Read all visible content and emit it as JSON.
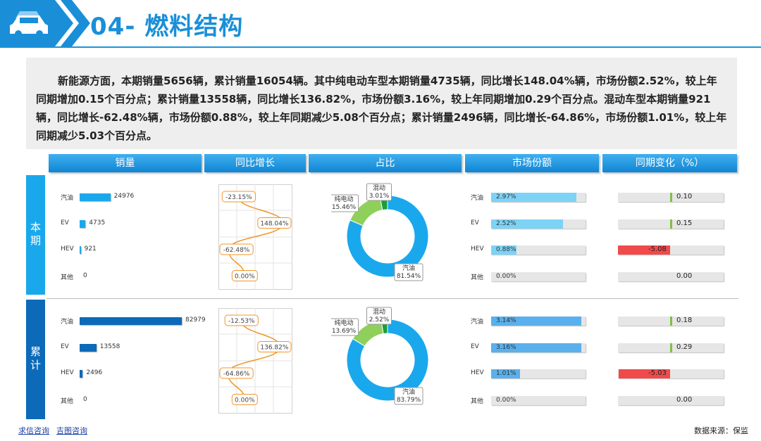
{
  "header": {
    "title": "04- 燃料结构"
  },
  "summary": "新能源方面，本期销量5656辆，累计销量16054辆。其中纯电动车型本期销量4735辆，同比增长148.04%辆，市场份额2.52%，较上年同期增加0.15个百分点；累计销量13558辆，同比增长136.82%，市场份额3.16%，较上年同期增加0.29个百分点。混动车型本期销量921辆，同比增长-62.48%辆，市场份额0.88%，较上年同期减少5.08个百分点；累计销量2496辆，同比增长-64.86%，市场份额1.01%，较上年同期减少5.03个百分点。",
  "columns": [
    "销量",
    "同比增长",
    "占比",
    "市场份额",
    "同期变化（%）"
  ],
  "colors": {
    "current": "#1aa8ec",
    "cumulative": "#0d6ab8",
    "growth_line": "#f0962a",
    "ms_current": "#7dd3f5",
    "ms_cumulative": "#5ab0ec",
    "change_pos": "#7cc242",
    "change_neg": "#f04a4a"
  },
  "sections": [
    {
      "label": "本期",
      "categories": [
        "汽油",
        "EV",
        "HEV",
        "其他"
      ],
      "sales": [
        "24976",
        "4735",
        "921",
        "0"
      ],
      "growth": [
        "-23.15%",
        "148.04%",
        "-62.48%",
        "0.00%"
      ],
      "share": {
        "labels": [
          "汽油\n81.54%",
          "纯电动\n15.46%",
          "混动\n3.01%"
        ]
      },
      "market_share": [
        "2.97%",
        "2.52%",
        "0.88%",
        "0.00%"
      ],
      "change": [
        "0.10",
        "0.15",
        "-5.08",
        "0.00"
      ]
    },
    {
      "label": "累计",
      "categories": [
        "汽油",
        "EV",
        "HEV",
        "其他"
      ],
      "sales": [
        "82979",
        "13558",
        "2496",
        "0"
      ],
      "growth": [
        "-12.53%",
        "136.82%",
        "-64.86%",
        "0.00%"
      ],
      "share": {
        "labels": [
          "汽油\n83.79%",
          "纯电动\n13.69%",
          "混动\n2.52%"
        ]
      },
      "market_share": [
        "3.14%",
        "3.16%",
        "1.01%",
        "0.00%"
      ],
      "change": [
        "0.18",
        "0.29",
        "-5.03",
        "0.00"
      ]
    }
  ],
  "chart_data": [
    {
      "type": "bar",
      "title": "销量",
      "categories": [
        "汽油",
        "EV",
        "HEV",
        "其他"
      ],
      "series": [
        {
          "name": "本期",
          "values": [
            24976,
            4735,
            921,
            0
          ]
        },
        {
          "name": "累计",
          "values": [
            82979,
            13558,
            2496,
            0
          ]
        }
      ]
    },
    {
      "type": "line",
      "title": "同比增长",
      "categories": [
        "汽油",
        "EV",
        "HEV",
        "其他"
      ],
      "series": [
        {
          "name": "本期",
          "values": [
            -23.15,
            148.04,
            -62.48,
            0.0
          ]
        },
        {
          "name": "累计",
          "values": [
            -12.53,
            136.82,
            -64.86,
            0.0
          ]
        }
      ]
    },
    {
      "type": "pie",
      "title": "占比",
      "series": [
        {
          "name": "本期",
          "categories": [
            "汽油",
            "纯电动",
            "混动"
          ],
          "values": [
            81.54,
            15.46,
            3.01
          ]
        },
        {
          "name": "累计",
          "categories": [
            "汽油",
            "纯电动",
            "混动"
          ],
          "values": [
            83.79,
            13.69,
            2.52
          ]
        }
      ]
    },
    {
      "type": "bar",
      "title": "市场份额",
      "categories": [
        "汽油",
        "EV",
        "HEV",
        "其他"
      ],
      "series": [
        {
          "name": "本期",
          "values": [
            2.97,
            2.52,
            0.88,
            0.0
          ]
        },
        {
          "name": "累计",
          "values": [
            3.14,
            3.16,
            1.01,
            0.0
          ]
        }
      ]
    },
    {
      "type": "bar",
      "title": "同期变化（%）",
      "categories": [
        "汽油",
        "EV",
        "HEV",
        "其他"
      ],
      "series": [
        {
          "name": "本期",
          "values": [
            0.1,
            0.15,
            -5.08,
            0.0
          ]
        },
        {
          "name": "累计",
          "values": [
            0.18,
            0.29,
            -5.03,
            0.0
          ]
        }
      ]
    }
  ],
  "footer": {
    "link1": "求信咨询",
    "link2": "吉图咨询",
    "source": "数据来源：保监"
  }
}
